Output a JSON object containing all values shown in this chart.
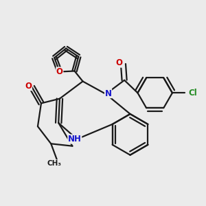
{
  "bg_color": "#ebebeb",
  "bond_color": "#1a1a1a",
  "bond_width": 1.6,
  "dbo": 0.055,
  "atom_colors": {
    "O": "#cc0000",
    "N": "#1414cc",
    "Cl": "#228B22",
    "C": "#1a1a1a"
  },
  "font_size_atom": 8.5,
  "font_size_small": 7.0
}
